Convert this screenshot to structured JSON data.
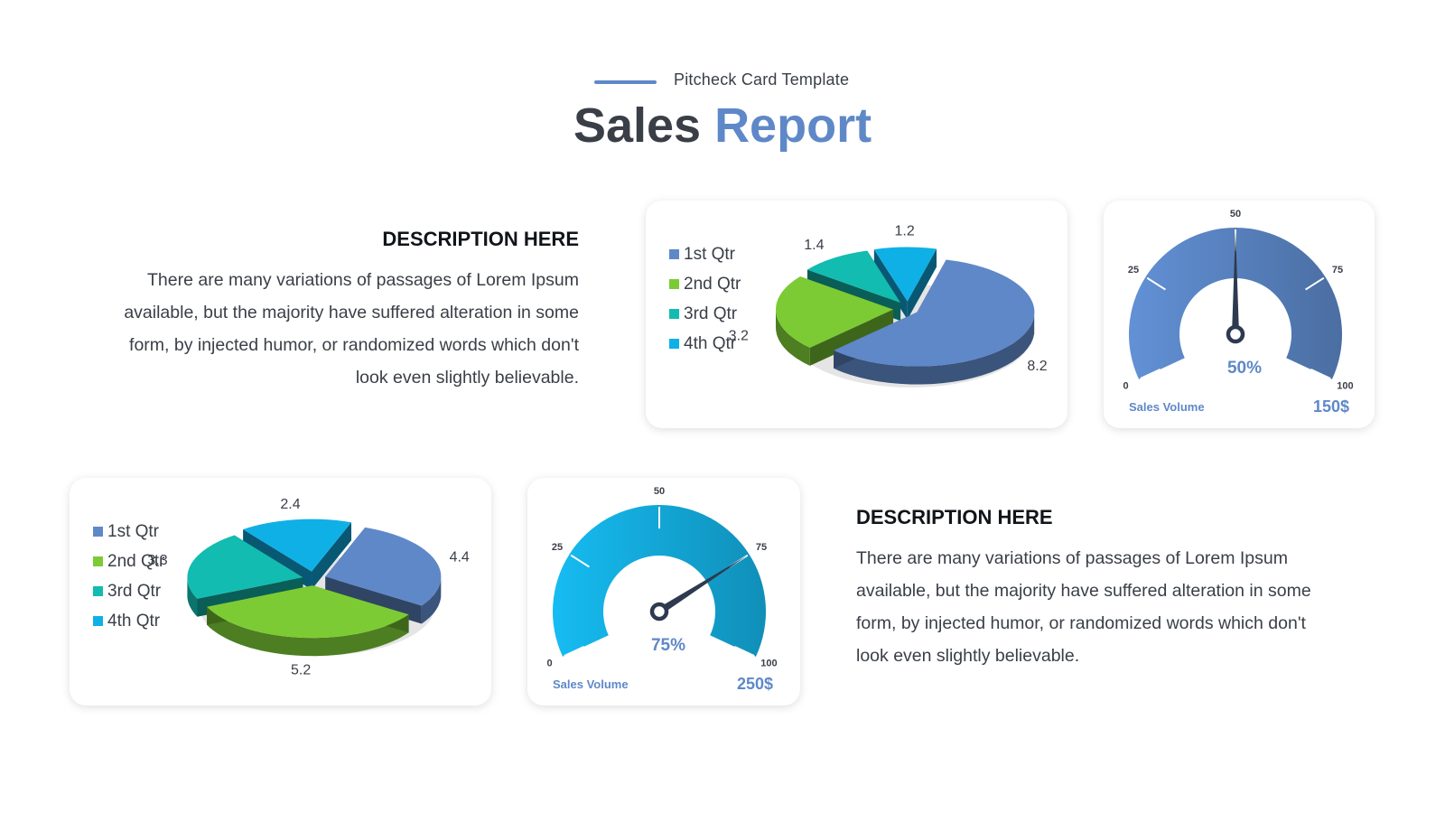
{
  "header": {
    "kicker": "Pitcheck Card Template",
    "title_part1": "Sales ",
    "title_part2": "Report"
  },
  "descriptions": [
    {
      "title": "DESCRIPTION HERE",
      "lines": [
        "There are many variations of passages of Lorem Ipsum",
        "available, but the majority have suffered alteration in some",
        "form, by injected humor, or randomized words which don't",
        "look even slightly believable."
      ]
    },
    {
      "title": "DESCRIPTION HERE",
      "lines": [
        "There are many variations of passages of Lorem Ipsum",
        "available, but the majority have suffered alteration in some",
        "form, by injected humor, or randomized words which don't",
        "look even slightly believable."
      ]
    }
  ],
  "colors": {
    "q1": "#5f88c8",
    "q2": "#7ccb35",
    "q3": "#12bcb0",
    "q4": "#0fb0e6",
    "accent": "#5f88c8",
    "gauge1": "#5b86c6",
    "gauge2": "#14aee0"
  },
  "chart_data": [
    {
      "type": "pie",
      "categories": [
        "1st Qtr",
        "2nd Qtr",
        "3rd Qtr",
        "4th Qtr"
      ],
      "values": [
        8.2,
        3.2,
        1.4,
        1.2
      ],
      "legend": "left"
    },
    {
      "type": "gauge",
      "ticks": [
        "0",
        "25",
        "50",
        "75",
        "100"
      ],
      "range": [
        0,
        100
      ],
      "value": 50,
      "value_label": "50%",
      "footer_label": "Sales Volume",
      "footer_value": "150$"
    },
    {
      "type": "pie",
      "categories": [
        "1st Qtr",
        "2nd Qtr",
        "3rd Qtr",
        "4th Qtr"
      ],
      "values": [
        4.4,
        5.2,
        3.3,
        2.4
      ],
      "legend": "left"
    },
    {
      "type": "gauge",
      "ticks": [
        "0",
        "25",
        "50",
        "75",
        "100"
      ],
      "range": [
        0,
        100
      ],
      "value": 75,
      "value_label": "75%",
      "footer_label": "Sales Volume",
      "footer_value": "250$"
    }
  ]
}
